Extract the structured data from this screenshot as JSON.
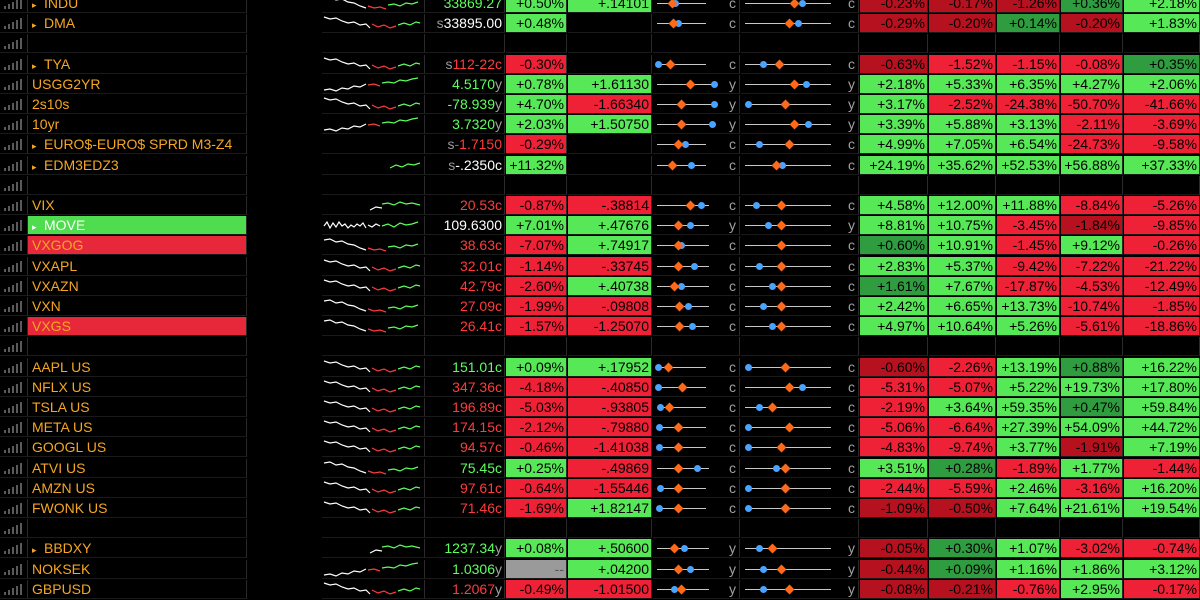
{
  "colors": {
    "up_bg": "#57e857",
    "up_dark_bg": "#2f9c3f",
    "down_bg": "#ee2136",
    "down_dark_bg": "#b5111f",
    "ticker": "#f5a623",
    "dot": "#4aa3ff",
    "diamond": "#ff6a1a"
  },
  "rows": [
    {
      "name": "INDU",
      "tri": true,
      "spark": "mixed",
      "last": "33869.27",
      "src": "",
      "last_color": "tg",
      "pct": "+0.50%",
      "pct_bg": "g",
      "net": "+.14101",
      "net_bg": "g",
      "r1": {
        "suf": "c",
        "dot": 0.35,
        "dia": 0.28,
        "line": 0.75
      },
      "r2": {
        "suf": "c",
        "dot": 0.65,
        "dia": 0.55,
        "line": 0.9
      },
      "p": [
        [
          "-0.23%",
          "dr"
        ],
        [
          "-0.17%",
          "dr"
        ],
        [
          "-1.26%",
          "dr"
        ],
        [
          "+0.36%",
          "dg"
        ],
        [
          "+2.18%",
          "g"
        ]
      ]
    },
    {
      "name": "DMA",
      "tri": true,
      "spark": "down",
      "last": "33895.00",
      "src": "s",
      "last_color": "tw",
      "pct": "+0.48%",
      "pct_bg": "g",
      "net": "",
      "net_bg": "",
      "r1": {
        "suf": "c",
        "dot": 0.4,
        "dia": 0.3,
        "line": 0.75
      },
      "r2": {
        "suf": "c",
        "dot": 0.6,
        "dia": 0.5,
        "line": 0.9
      },
      "p": [
        [
          "-0.29%",
          "dr"
        ],
        [
          "-0.20%",
          "dr"
        ],
        [
          "+0.14%",
          "dg"
        ],
        [
          "-0.20%",
          "dr"
        ],
        [
          "+1.83%",
          "g"
        ]
      ]
    },
    null,
    {
      "name": "TYA",
      "tri": true,
      "spark": "down",
      "last": "112-22c",
      "src": "s",
      "last_color": "tr",
      "pct": "-0.30%",
      "pct_bg": "r",
      "net": "",
      "net_bg": "",
      "r1": {
        "suf": "c",
        "dot": 0.0,
        "dia": 0.25,
        "line": 0.75
      },
      "r2": {
        "suf": "c",
        "dot": 0.2,
        "dia": 0.38,
        "line": 0.9
      },
      "p": [
        [
          "-0.63%",
          "dr"
        ],
        [
          "-1.52%",
          "r"
        ],
        [
          "-1.15%",
          "r"
        ],
        [
          "-0.08%",
          "r"
        ],
        [
          "+0.35%",
          "dg"
        ]
      ]
    },
    {
      "name": "USGG2YR",
      "tri": false,
      "spark": "up",
      "last": "4.5170",
      "src": "",
      "suf": "y",
      "last_color": "tg",
      "pct": "+0.78%",
      "pct_bg": "g",
      "net": "+1.61130",
      "net_bg": "g",
      "r1": {
        "suf": "y",
        "dot": 0.95,
        "dia": 0.55,
        "line": 0.9
      },
      "r2": {
        "suf": "y",
        "dot": 0.7,
        "dia": 0.55,
        "line": 0.9
      },
      "p": [
        [
          "+2.18%",
          "g"
        ],
        [
          "+5.33%",
          "g"
        ],
        [
          "+6.35%",
          "g"
        ],
        [
          "+4.27%",
          "g"
        ],
        [
          "+2.06%",
          "g"
        ]
      ]
    },
    {
      "name": "2s10s",
      "tri": false,
      "spark": "down",
      "last": "-78.939",
      "src": "",
      "suf": "y",
      "last_color": "tg",
      "pct": "+4.70%",
      "pct_bg": "g",
      "net": "-1.66340",
      "net_bg": "r",
      "r1": {
        "suf": "y",
        "dot": 0.95,
        "dia": 0.4,
        "line": 0.9
      },
      "r2": {
        "suf": "y",
        "dot": 0.02,
        "dia": 0.45,
        "line": 0.9
      },
      "p": [
        [
          "+3.17%",
          "g"
        ],
        [
          "-2.52%",
          "r"
        ],
        [
          "-24.38%",
          "r"
        ],
        [
          "-50.70%",
          "r"
        ],
        [
          "-41.66%",
          "r"
        ]
      ]
    },
    {
      "name": "10yr",
      "tri": false,
      "spark": "up",
      "last": "3.7320",
      "src": "",
      "suf": "y",
      "last_color": "tg",
      "pct": "+2.03%",
      "pct_bg": "g",
      "net": "+1.50750",
      "net_bg": "g",
      "r1": {
        "suf": "y",
        "dot": 0.92,
        "dia": 0.4,
        "line": 0.9
      },
      "r2": {
        "suf": "y",
        "dot": 0.72,
        "dia": 0.55,
        "line": 0.9
      },
      "p": [
        [
          "+3.39%",
          "g"
        ],
        [
          "+5.88%",
          "g"
        ],
        [
          "+3.13%",
          "g"
        ],
        [
          "-2.11%",
          "r"
        ],
        [
          "-3.69%",
          "r"
        ]
      ]
    },
    {
      "name": "EURO$-EURO$ SPRD M3-Z4",
      "tri": true,
      "spark": "none",
      "last": "-1.7150",
      "src": "s",
      "last_color": "tr",
      "pct": "-0.29%",
      "pct_bg": "r",
      "net": "",
      "net_bg": "",
      "r1": {
        "suf": "c",
        "dot": 0.55,
        "dia": 0.4,
        "line": 0.75
      },
      "r2": {
        "suf": "c",
        "dot": 0.15,
        "dia": 0.5,
        "line": 0.9
      },
      "p": [
        [
          "+4.99%",
          "g"
        ],
        [
          "+7.05%",
          "g"
        ],
        [
          "+6.54%",
          "g"
        ],
        [
          "-24.73%",
          "r"
        ],
        [
          "-9.58%",
          "r"
        ]
      ]
    },
    {
      "name": "EDM3EDZ3",
      "tri": true,
      "spark": "upshort",
      "last": "-.2350c",
      "src": "s",
      "last_color": "tw",
      "pct": "+11.32%",
      "pct_bg": "g",
      "net": "",
      "net_bg": "",
      "r1": {
        "suf": "c",
        "dot": 0.68,
        "dia": 0.28,
        "line": 0.75
      },
      "r2": {
        "suf": "c",
        "dot": 0.42,
        "dia": 0.35,
        "line": 0.9
      },
      "p": [
        [
          "+24.19%",
          "g"
        ],
        [
          "+35.62%",
          "g"
        ],
        [
          "+52.53%",
          "g"
        ],
        [
          "+56.88%",
          "g"
        ],
        [
          "+37.33%",
          "g"
        ]
      ]
    },
    null,
    {
      "name": "VIX",
      "tri": false,
      "spark": "upright",
      "last": "20.53c",
      "src": "",
      "last_color": "tr",
      "pct": "-0.87%",
      "pct_bg": "r",
      "net": "-.38814",
      "net_bg": "r",
      "r1": {
        "suf": "c",
        "dot": 0.82,
        "dia": 0.62,
        "line": 0.8
      },
      "r2": {
        "suf": "c",
        "dot": 0.12,
        "dia": 0.4,
        "line": 0.9
      },
      "p": [
        [
          "+4.58%",
          "g"
        ],
        [
          "+12.00%",
          "g"
        ],
        [
          "+11.88%",
          "g"
        ],
        [
          "-8.84%",
          "r"
        ],
        [
          "-5.26%",
          "r"
        ]
      ]
    },
    {
      "name": "MOVE",
      "tri": true,
      "spark": "wide",
      "last": "109.6300",
      "src": "",
      "last_color": "tw",
      "name_bg": "bg-green",
      "pct": "+7.01%",
      "pct_bg": "g",
      "net": "+.47676",
      "net_bg": "g",
      "r1": {
        "suf": "y",
        "dot": 0.62,
        "dia": 0.38,
        "line": 0.8
      },
      "r2": {
        "suf": "y",
        "dot": 0.25,
        "dia": 0.4,
        "line": 0.9
      },
      "p": [
        [
          "+8.81%",
          "g"
        ],
        [
          "+10.75%",
          "g"
        ],
        [
          "-3.45%",
          "r"
        ],
        [
          "-1.84%",
          "dr"
        ],
        [
          "-9.85%",
          "r"
        ]
      ]
    },
    {
      "name": "VXGOG",
      "tri": false,
      "spark": "mixed",
      "last": "38.63c",
      "src": "",
      "last_color": "tr",
      "name_bg": "bg-red",
      "pct": "-7.07%",
      "pct_bg": "r",
      "net": "+.74917",
      "net_bg": "g",
      "r1": {
        "suf": "c",
        "dot": 0.45,
        "dia": 0.38,
        "line": 0.8
      },
      "r2": {
        "suf": "c",
        "dot": 0.4,
        "dia": 0.4,
        "line": 0.9
      },
      "p": [
        [
          "+0.60%",
          "dg"
        ],
        [
          "+10.91%",
          "g"
        ],
        [
          "-1.45%",
          "r"
        ],
        [
          "+9.12%",
          "g"
        ],
        [
          "-0.26%",
          "r"
        ]
      ]
    },
    {
      "name": "VXAPL",
      "tri": false,
      "spark": "down",
      "last": "32.01c",
      "src": "",
      "last_color": "tr",
      "pct": "-1.14%",
      "pct_bg": "r",
      "net": "-.33745",
      "net_bg": "r",
      "r1": {
        "suf": "c",
        "dot": 0.7,
        "dia": 0.38,
        "line": 0.8
      },
      "r2": {
        "suf": "c",
        "dot": 0.15,
        "dia": 0.4,
        "line": 0.9
      },
      "p": [
        [
          "+2.83%",
          "g"
        ],
        [
          "+5.37%",
          "g"
        ],
        [
          "-9.42%",
          "r"
        ],
        [
          "-7.22%",
          "r"
        ],
        [
          "-21.22%",
          "r"
        ]
      ]
    },
    {
      "name": "VXAZN",
      "tri": false,
      "spark": "down",
      "last": "42.79c",
      "src": "",
      "last_color": "tr",
      "pct": "-2.60%",
      "pct_bg": "r",
      "net": "+.40738",
      "net_bg": "g",
      "r1": {
        "suf": "c",
        "dot": 0.45,
        "dia": 0.3,
        "line": 0.8
      },
      "r2": {
        "suf": "c",
        "dot": 0.3,
        "dia": 0.4,
        "line": 0.9
      },
      "p": [
        [
          "+1.61%",
          "dg"
        ],
        [
          "+7.67%",
          "g"
        ],
        [
          "-17.87%",
          "r"
        ],
        [
          "-4.53%",
          "r"
        ],
        [
          "-12.49%",
          "r"
        ]
      ]
    },
    {
      "name": "VXN",
      "tri": false,
      "spark": "mixed",
      "last": "27.09c",
      "src": "",
      "last_color": "tr",
      "pct": "-1.99%",
      "pct_bg": "r",
      "net": "-.09808",
      "net_bg": "r",
      "r1": {
        "suf": "c",
        "dot": 0.58,
        "dia": 0.4,
        "line": 0.8
      },
      "r2": {
        "suf": "c",
        "dot": 0.2,
        "dia": 0.4,
        "line": 0.9
      },
      "p": [
        [
          "+2.42%",
          "g"
        ],
        [
          "+6.65%",
          "g"
        ],
        [
          "+13.73%",
          "g"
        ],
        [
          "-10.74%",
          "r"
        ],
        [
          "-1.85%",
          "r"
        ]
      ]
    },
    {
      "name": "VXGS",
      "tri": false,
      "spark": "mixed",
      "last": "26.41c",
      "src": "",
      "last_color": "tr",
      "name_bg": "bg-red",
      "pct": "-1.57%",
      "pct_bg": "r",
      "net": "-1.25070",
      "net_bg": "r",
      "r1": {
        "suf": "c",
        "dot": 0.65,
        "dia": 0.4,
        "line": 0.8
      },
      "r2": {
        "suf": "c",
        "dot": 0.3,
        "dia": 0.4,
        "line": 0.9
      },
      "p": [
        [
          "+4.97%",
          "g"
        ],
        [
          "+10.64%",
          "g"
        ],
        [
          "+5.26%",
          "g"
        ],
        [
          "-5.61%",
          "r"
        ],
        [
          "-18.86%",
          "r"
        ]
      ]
    },
    null,
    {
      "name": "AAPL US",
      "tri": false,
      "spark": "down",
      "last": "151.01c",
      "src": "",
      "last_color": "tg",
      "pct": "+0.09%",
      "pct_bg": "g",
      "net": "+.17952",
      "net_bg": "g",
      "r1": {
        "suf": "c",
        "dot": 0.0,
        "dia": 0.2,
        "line": 0.75
      },
      "r2": {
        "suf": "c",
        "dot": 0.02,
        "dia": 0.45,
        "line": 0.9
      },
      "p": [
        [
          "-0.60%",
          "dr"
        ],
        [
          "-2.26%",
          "r"
        ],
        [
          "+13.19%",
          "g"
        ],
        [
          "+0.88%",
          "dg"
        ],
        [
          "+16.22%",
          "g"
        ]
      ]
    },
    {
      "name": "NFLX US",
      "tri": false,
      "spark": "down",
      "last": "347.36c",
      "src": "",
      "last_color": "tr",
      "pct": "-4.18%",
      "pct_bg": "r",
      "net": "-.40850",
      "net_bg": "r",
      "r1": {
        "suf": "c",
        "dot": 0.0,
        "dia": 0.5,
        "line": 0.75
      },
      "r2": {
        "suf": "c",
        "dot": 0.65,
        "dia": 0.5,
        "line": 0.9
      },
      "p": [
        [
          "-5.31%",
          "r"
        ],
        [
          "-5.07%",
          "r"
        ],
        [
          "+5.22%",
          "g"
        ],
        [
          "+19.73%",
          "g"
        ],
        [
          "+17.80%",
          "g"
        ]
      ]
    },
    {
      "name": "TSLA US",
      "tri": false,
      "spark": "down",
      "last": "196.89c",
      "src": "",
      "last_color": "tr",
      "pct": "-5.03%",
      "pct_bg": "r",
      "net": "-.93805",
      "net_bg": "r",
      "r1": {
        "suf": "c",
        "dot": 0.05,
        "dia": 0.22,
        "line": 0.75
      },
      "r2": {
        "suf": "c",
        "dot": 0.15,
        "dia": 0.3,
        "line": 0.9
      },
      "p": [
        [
          "-2.19%",
          "r"
        ],
        [
          "+3.64%",
          "g"
        ],
        [
          "+59.35%",
          "g"
        ],
        [
          "+0.47%",
          "dg"
        ],
        [
          "+59.84%",
          "g"
        ]
      ]
    },
    {
      "name": "META US",
      "tri": false,
      "spark": "down",
      "last": "174.15c",
      "src": "",
      "last_color": "tr",
      "pct": "-2.12%",
      "pct_bg": "r",
      "net": "-.79880",
      "net_bg": "r",
      "r1": {
        "suf": "c",
        "dot": 0.02,
        "dia": 0.4,
        "line": 0.75
      },
      "r2": {
        "suf": "c",
        "dot": 0.02,
        "dia": 0.5,
        "line": 0.9
      },
      "p": [
        [
          "-5.06%",
          "r"
        ],
        [
          "-6.64%",
          "r"
        ],
        [
          "+27.39%",
          "g"
        ],
        [
          "+54.09%",
          "g"
        ],
        [
          "+44.72%",
          "g"
        ]
      ]
    },
    {
      "name": "GOOGL US",
      "tri": false,
      "spark": "down",
      "last": "94.57c",
      "src": "",
      "last_color": "tr",
      "pct": "-0.46%",
      "pct_bg": "r",
      "net": "-1.41038",
      "net_bg": "r",
      "r1": {
        "suf": "c",
        "dot": 0.02,
        "dia": 0.4,
        "line": 0.75
      },
      "r2": {
        "suf": "c",
        "dot": 0.02,
        "dia": 0.4,
        "line": 0.9
      },
      "p": [
        [
          "-4.83%",
          "r"
        ],
        [
          "-9.74%",
          "r"
        ],
        [
          "+3.77%",
          "g"
        ],
        [
          "-1.91%",
          "dr"
        ],
        [
          "+7.19%",
          "g"
        ]
      ]
    },
    {
      "name": "ATVI US",
      "tri": false,
      "spark": "mixed",
      "last": "75.45c",
      "src": "",
      "last_color": "tg",
      "pct": "+0.25%",
      "pct_bg": "g",
      "net": "-.49869",
      "net_bg": "r",
      "r1": {
        "suf": "c",
        "dot": 0.75,
        "dia": 0.38,
        "line": 0.8
      },
      "r2": {
        "suf": "c",
        "dot": 0.35,
        "dia": 0.45,
        "line": 0.9
      },
      "p": [
        [
          "+3.51%",
          "g"
        ],
        [
          "+0.28%",
          "dg"
        ],
        [
          "-1.89%",
          "r"
        ],
        [
          "+1.77%",
          "g"
        ],
        [
          "-1.44%",
          "r"
        ]
      ]
    },
    {
      "name": "AMZN US",
      "tri": false,
      "spark": "down",
      "last": "97.61c",
      "src": "",
      "last_color": "tr",
      "pct": "-0.64%",
      "pct_bg": "r",
      "net": "-1.55446",
      "net_bg": "r",
      "r1": {
        "suf": "c",
        "dot": 0.05,
        "dia": 0.4,
        "line": 0.75
      },
      "r2": {
        "suf": "c",
        "dot": 0.02,
        "dia": 0.45,
        "line": 0.9
      },
      "p": [
        [
          "-2.44%",
          "r"
        ],
        [
          "-5.59%",
          "r"
        ],
        [
          "+2.46%",
          "g"
        ],
        [
          "-3.16%",
          "r"
        ],
        [
          "+16.20%",
          "g"
        ]
      ]
    },
    {
      "name": "FWONK US",
      "tri": false,
      "spark": "down",
      "last": "71.46c",
      "src": "",
      "last_color": "tr",
      "pct": "-1.69%",
      "pct_bg": "r",
      "net": "+1.82147",
      "net_bg": "g",
      "r1": {
        "suf": "c",
        "dot": 0.02,
        "dia": 0.4,
        "line": 0.75
      },
      "r2": {
        "suf": "c",
        "dot": 0.02,
        "dia": 0.45,
        "line": 0.9
      },
      "p": [
        [
          "-1.09%",
          "dr"
        ],
        [
          "-0.50%",
          "dr"
        ],
        [
          "+7.64%",
          "g"
        ],
        [
          "+21.61%",
          "g"
        ],
        [
          "+19.54%",
          "g"
        ]
      ]
    },
    null,
    {
      "name": "BBDXY",
      "tri": true,
      "spark": "upright",
      "last": "1237.34",
      "src": "",
      "suf": "y",
      "last_color": "tg",
      "pct": "+0.08%",
      "pct_bg": "g",
      "net": "+.50600",
      "net_bg": "g",
      "r1": {
        "suf": "y",
        "dot": 0.5,
        "dia": 0.3,
        "line": 0.8
      },
      "r2": {
        "suf": "y",
        "dot": 0.15,
        "dia": 0.3,
        "line": 0.9
      },
      "p": [
        [
          "-0.05%",
          "dr"
        ],
        [
          "+0.30%",
          "dg"
        ],
        [
          "+1.07%",
          "g"
        ],
        [
          "-3.02%",
          "r"
        ],
        [
          "-0.74%",
          "r"
        ]
      ]
    },
    {
      "name": "NOKSEK",
      "tri": false,
      "spark": "up",
      "last": "1.0306",
      "src": "",
      "suf": "y",
      "last_color": "tg",
      "pct": "--",
      "pct_bg": "gy",
      "net": "+.04200",
      "net_bg": "g",
      "r1": {
        "suf": "y",
        "dot": 0.62,
        "dia": 0.38,
        "line": 0.8
      },
      "r2": {
        "suf": "y",
        "dot": 0.2,
        "dia": 0.4,
        "line": 0.9
      },
      "p": [
        [
          "-0.44%",
          "dr"
        ],
        [
          "+0.09%",
          "dg"
        ],
        [
          "+1.16%",
          "g"
        ],
        [
          "+1.86%",
          "g"
        ],
        [
          "+3.12%",
          "g"
        ]
      ]
    },
    {
      "name": "GBPUSD",
      "tri": false,
      "spark": "down",
      "last": "1.2067",
      "src": "",
      "suf": "y",
      "last_color": "tr",
      "pct": "-0.49%",
      "pct_bg": "r",
      "net": "-1.01500",
      "net_bg": "r",
      "r1": {
        "suf": "y",
        "dot": 0.3,
        "dia": 0.45,
        "line": 0.8
      },
      "r2": {
        "suf": "y",
        "dot": 0.2,
        "dia": 0.5,
        "line": 0.9
      },
      "p": [
        [
          "-0.08%",
          "dr"
        ],
        [
          "-0.21%",
          "dr"
        ],
        [
          "-0.76%",
          "r"
        ],
        [
          "+2.95%",
          "g"
        ],
        [
          "-0.17%",
          "r"
        ]
      ]
    }
  ]
}
